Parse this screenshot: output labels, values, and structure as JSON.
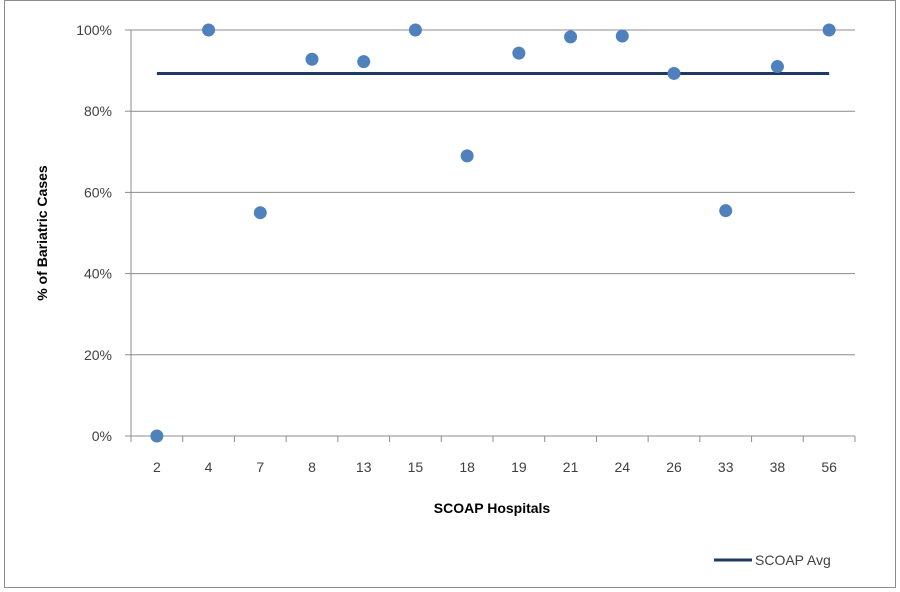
{
  "chart_data": {
    "type": "scatter",
    "title": "",
    "xlabel": "SCOAP Hospitals",
    "ylabel": "% of Bariatric Cases",
    "categories": [
      "2",
      "4",
      "7",
      "8",
      "13",
      "15",
      "18",
      "19",
      "21",
      "24",
      "26",
      "33",
      "38",
      "56"
    ],
    "series": [
      {
        "type": "scatter",
        "color": "#4f81bd",
        "values": [
          0,
          100,
          55,
          92.8,
          92.2,
          100,
          69,
          94.3,
          98.3,
          98.5,
          89.3,
          55.5,
          91,
          100
        ]
      },
      {
        "name": "SCOAP Avg",
        "type": "line",
        "color": "#1f3864",
        "values": [
          89.3,
          89.3,
          89.3,
          89.3,
          89.3,
          89.3,
          89.3,
          89.3,
          89.3,
          89.3,
          89.3,
          89.3,
          89.3,
          89.3
        ]
      }
    ],
    "ylim": [
      0,
      100
    ],
    "yticks": [
      0,
      20,
      40,
      60,
      80,
      100
    ],
    "ytick_labels": [
      "0%",
      "20%",
      "40%",
      "60%",
      "80%",
      "100%"
    ],
    "grid": true,
    "legend_position": "bottom-right"
  }
}
